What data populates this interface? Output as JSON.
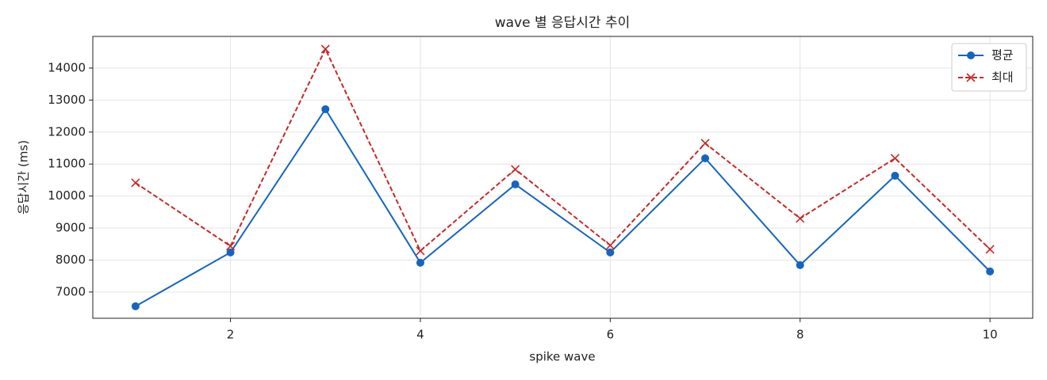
{
  "chart_data": {
    "type": "line",
    "title": "wave 별 응답시간 추이",
    "x_label": "spike wave",
    "y_label": "응답시간 (ms)",
    "x": [
      1,
      2,
      3,
      4,
      5,
      6,
      7,
      8,
      9,
      10
    ],
    "series": [
      {
        "name": "평균",
        "color": "#1565c0",
        "marker": "o",
        "linestyle": "solid",
        "values": [
          6555,
          8237,
          12714,
          7915,
          10364,
          8237,
          11180,
          7841,
          10636,
          7643
        ]
      },
      {
        "name": "최대",
        "color": "#c62828",
        "marker": "x",
        "linestyle": "dashed",
        "values": [
          10413,
          8435,
          14594,
          8286,
          10834,
          8459,
          11650,
          9300,
          11180,
          8336
        ]
      }
    ],
    "xlim": [
      0.55,
      10.45
    ],
    "xticks": [
      2,
      4,
      6,
      8,
      10
    ],
    "ylim": [
      6180,
      14990
    ],
    "yticks": [
      7000,
      8000,
      9000,
      10000,
      11000,
      12000,
      13000,
      14000
    ],
    "grid": true,
    "legend": "upper right"
  }
}
